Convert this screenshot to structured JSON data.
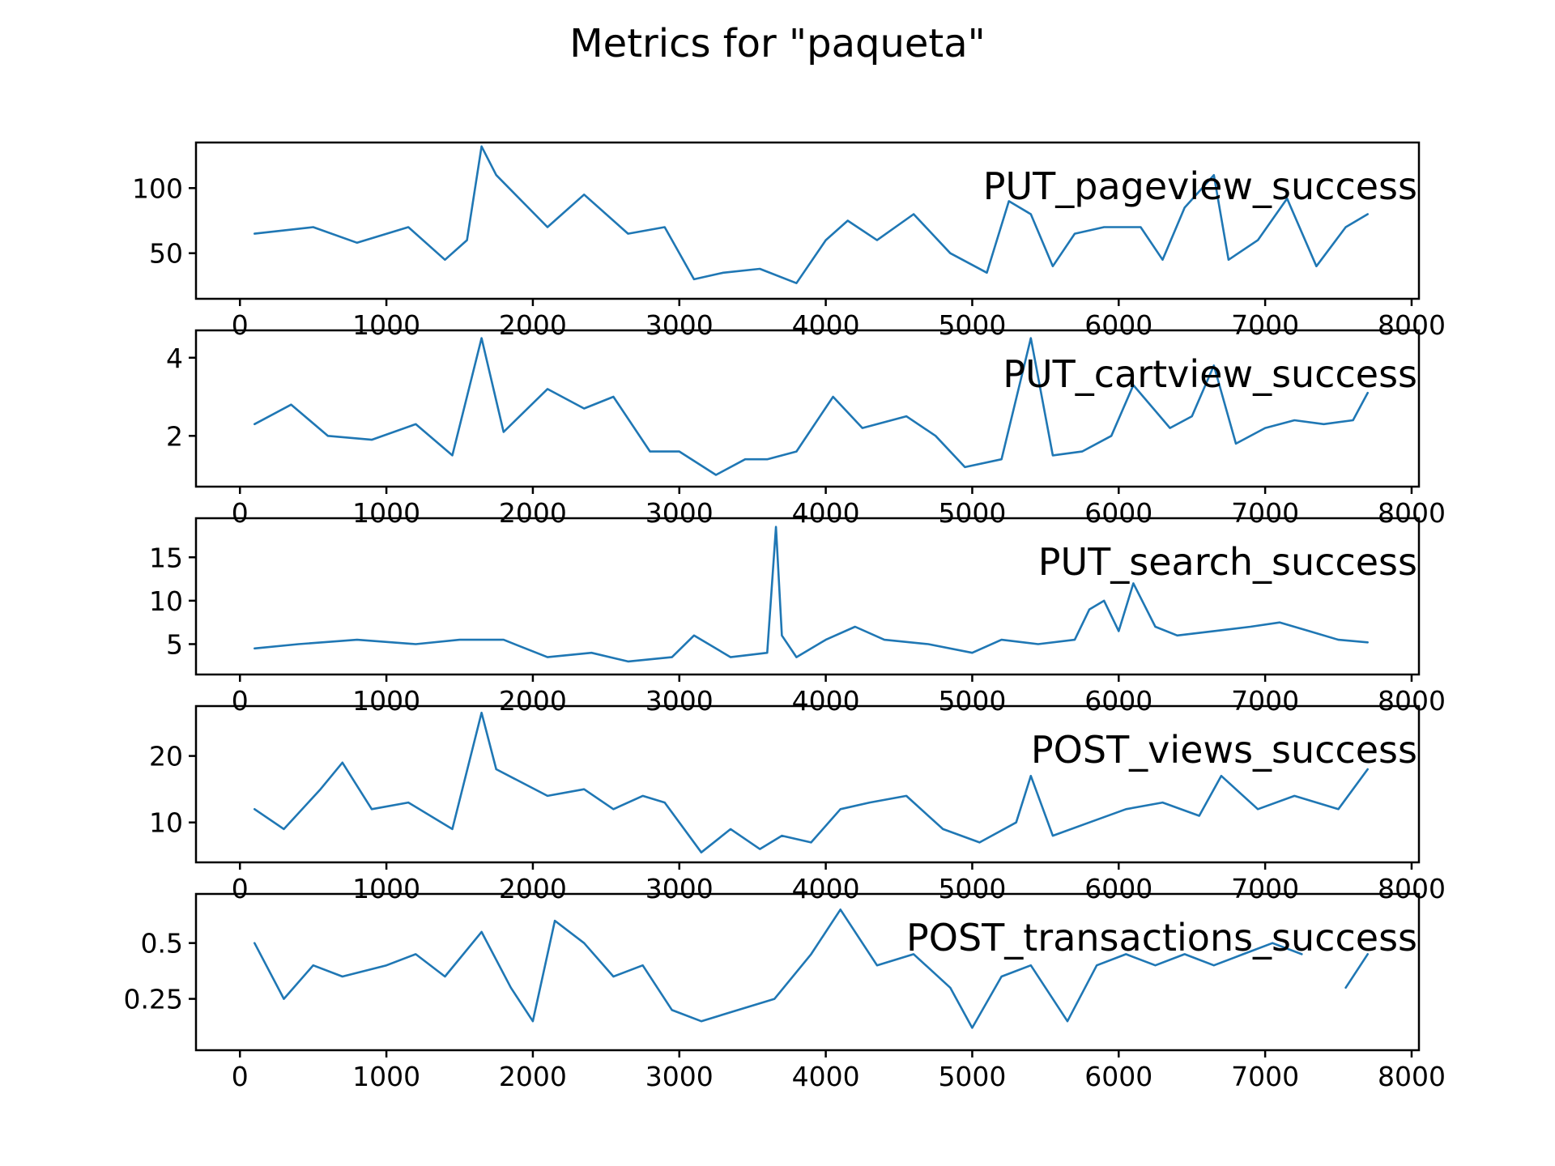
{
  "title": "Metrics for \"paqueta\"",
  "colors": {
    "line": "#1f77b4",
    "axes": "#000000",
    "background": "#ffffff"
  },
  "chart_data": [
    {
      "type": "line",
      "label": "PUT_pageview_success",
      "xlim": [
        -300,
        8050
      ],
      "ylim": [
        15,
        135
      ],
      "xticks": [
        0,
        1000,
        2000,
        3000,
        4000,
        5000,
        6000,
        7000,
        8000
      ],
      "yticks": [
        50,
        100
      ],
      "x": [
        100,
        500,
        800,
        1150,
        1400,
        1550,
        1650,
        1750,
        2100,
        2350,
        2650,
        2900,
        3100,
        3300,
        3550,
        3800,
        4000,
        4150,
        4350,
        4600,
        4850,
        5100,
        5250,
        5400,
        5550,
        5700,
        5900,
        6150,
        6300,
        6450,
        6650,
        6750,
        6950,
        7150,
        7350,
        7550,
        7700
      ],
      "y": [
        65,
        70,
        58,
        70,
        45,
        60,
        132,
        110,
        70,
        95,
        65,
        70,
        30,
        35,
        38,
        27,
        60,
        75,
        60,
        80,
        50,
        35,
        90,
        80,
        40,
        65,
        70,
        70,
        45,
        85,
        110,
        45,
        60,
        92,
        40,
        70,
        80
      ]
    },
    {
      "type": "line",
      "label": "PUT_cartview_success",
      "xlim": [
        -300,
        8050
      ],
      "ylim": [
        0.7,
        4.7
      ],
      "xticks": [
        0,
        1000,
        2000,
        3000,
        4000,
        5000,
        6000,
        7000,
        8000
      ],
      "yticks": [
        2,
        4
      ],
      "x": [
        100,
        350,
        600,
        900,
        1200,
        1450,
        1650,
        1800,
        2100,
        2350,
        2550,
        2800,
        3000,
        3250,
        3450,
        3600,
        3800,
        4050,
        4250,
        4550,
        4750,
        4950,
        5200,
        5400,
        5550,
        5750,
        5950,
        6100,
        6350,
        6500,
        6650,
        6800,
        7000,
        7200,
        7400,
        7600,
        7700
      ],
      "y": [
        2.3,
        2.8,
        2.0,
        1.9,
        2.3,
        1.5,
        4.5,
        2.1,
        3.2,
        2.7,
        3.0,
        1.6,
        1.6,
        1.0,
        1.4,
        1.4,
        1.6,
        3.0,
        2.2,
        2.5,
        2.0,
        1.2,
        1.4,
        4.5,
        1.5,
        1.6,
        2.0,
        3.3,
        2.2,
        2.5,
        3.8,
        1.8,
        2.2,
        2.4,
        2.3,
        2.4,
        3.1
      ]
    },
    {
      "type": "line",
      "label": "PUT_search_success",
      "xlim": [
        -300,
        8050
      ],
      "ylim": [
        1.5,
        19.5
      ],
      "xticks": [
        0,
        1000,
        2000,
        3000,
        4000,
        5000,
        6000,
        7000,
        8000
      ],
      "yticks": [
        5,
        10,
        15
      ],
      "x": [
        100,
        400,
        800,
        1200,
        1500,
        1800,
        2100,
        2400,
        2650,
        2950,
        3100,
        3350,
        3600,
        3660,
        3700,
        3800,
        4000,
        4200,
        4400,
        4700,
        5000,
        5200,
        5450,
        5700,
        5800,
        5900,
        6000,
        6100,
        6250,
        6400,
        6650,
        6900,
        7100,
        7300,
        7500,
        7700
      ],
      "y": [
        4.5,
        5.0,
        5.5,
        5.0,
        5.5,
        5.5,
        3.5,
        4.0,
        3.0,
        3.5,
        6.0,
        3.5,
        4.0,
        18.5,
        6.0,
        3.5,
        5.5,
        7.0,
        5.5,
        5.0,
        4.0,
        5.5,
        5.0,
        5.5,
        9.0,
        10.0,
        6.5,
        12.0,
        7.0,
        6.0,
        6.5,
        7.0,
        7.5,
        6.5,
        5.5,
        5.2
      ]
    },
    {
      "type": "line",
      "label": "POST_views_success",
      "xlim": [
        -300,
        8050
      ],
      "ylim": [
        4,
        27.5
      ],
      "xticks": [
        0,
        1000,
        2000,
        3000,
        4000,
        5000,
        6000,
        7000,
        8000
      ],
      "yticks": [
        10,
        20
      ],
      "x": [
        100,
        300,
        550,
        700,
        900,
        1150,
        1450,
        1650,
        1750,
        2100,
        2350,
        2550,
        2750,
        2900,
        3150,
        3350,
        3550,
        3700,
        3900,
        4100,
        4300,
        4550,
        4800,
        5050,
        5300,
        5400,
        5550,
        5800,
        6050,
        6300,
        6550,
        6700,
        6950,
        7200,
        7500,
        7700
      ],
      "y": [
        12,
        9,
        15,
        19,
        12,
        13,
        9,
        26.5,
        18,
        14,
        15,
        12,
        14,
        13,
        5.5,
        9,
        6,
        8,
        7,
        12,
        13,
        14,
        9,
        7,
        10,
        17,
        8,
        10,
        12,
        13,
        11,
        17,
        12,
        14,
        12,
        18
      ]
    },
    {
      "type": "line",
      "label": "POST_transactions_success",
      "xlim": [
        -300,
        8050
      ],
      "ylim": [
        0.02,
        0.72
      ],
      "xticks": [
        0,
        1000,
        2000,
        3000,
        4000,
        5000,
        6000,
        7000,
        8000
      ],
      "yticks": [
        0.25,
        0.5
      ],
      "x": [
        100,
        300,
        500,
        700,
        1000,
        1200,
        1400,
        1650,
        1850,
        2000,
        2150,
        2350,
        2550,
        2750,
        2950,
        3150,
        3400,
        3650,
        3900,
        4100,
        4350,
        4600,
        4850,
        5000,
        5200,
        5400,
        5650,
        5850,
        6050,
        6250,
        6450,
        6650,
        6850,
        7050,
        7250,
        7350,
        7550,
        7700
      ],
      "y": [
        0.5,
        0.25,
        0.4,
        0.35,
        0.4,
        0.45,
        0.35,
        0.55,
        0.3,
        0.15,
        0.6,
        0.5,
        0.35,
        0.4,
        0.2,
        0.15,
        0.2,
        0.25,
        0.45,
        0.65,
        0.4,
        0.45,
        0.3,
        0.12,
        0.35,
        0.4,
        0.15,
        0.4,
        0.45,
        0.4,
        0.45,
        0.4,
        0.45,
        0.5,
        0.45,
        null,
        0.3,
        0.45
      ]
    }
  ]
}
